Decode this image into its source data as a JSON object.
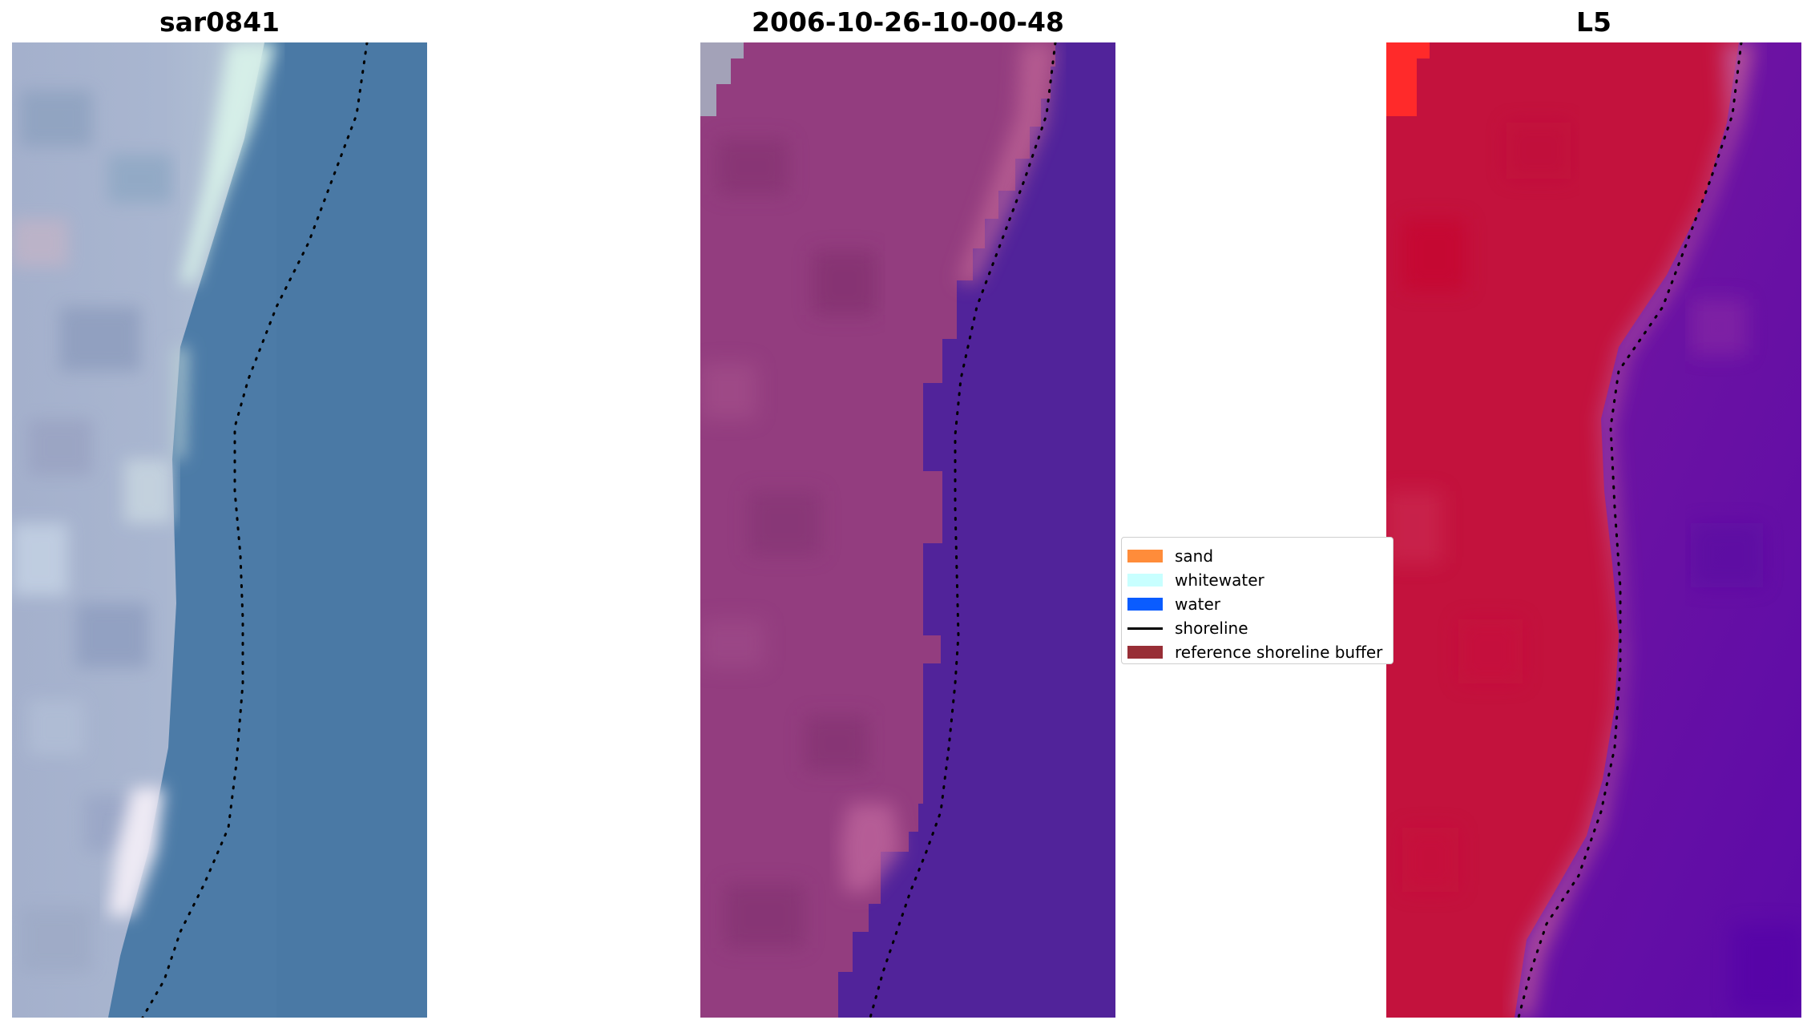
{
  "titles": {
    "left": "sar0841",
    "middle": "2006-10-26-10-00-48",
    "right": "L5"
  },
  "panels": {
    "left": {
      "content": "true-color satellite image tile",
      "shoreline_style": "dotted-black"
    },
    "middle": {
      "content": "classified image: land (magenta) vs water (purple)",
      "shoreline_style": "dotted-black"
    },
    "right": {
      "content": "index image: land (red) vs water (violet)",
      "shoreline_style": "dotted-black"
    }
  },
  "legend": {
    "items": [
      {
        "label": "sand",
        "kind": "patch",
        "color": "#ff8c3a"
      },
      {
        "label": "whitewater",
        "kind": "patch",
        "color": "#c8ffff"
      },
      {
        "label": "water",
        "kind": "patch",
        "color": "#0a5cff"
      },
      {
        "label": "shoreline",
        "kind": "line",
        "color": "#000000"
      },
      {
        "label": "reference shoreline buffer",
        "kind": "patch",
        "color": "#982e36"
      }
    ]
  },
  "colors": {
    "left_land": "#9eacc8",
    "left_water": "#4b7aa6",
    "left_whitewater": "#d8f0ea",
    "middle_land": "#913f7e",
    "middle_water": "#51239a",
    "right_land": "#c2123c",
    "right_water": "#6a12a6",
    "right_corner": "#ff2a2a"
  }
}
